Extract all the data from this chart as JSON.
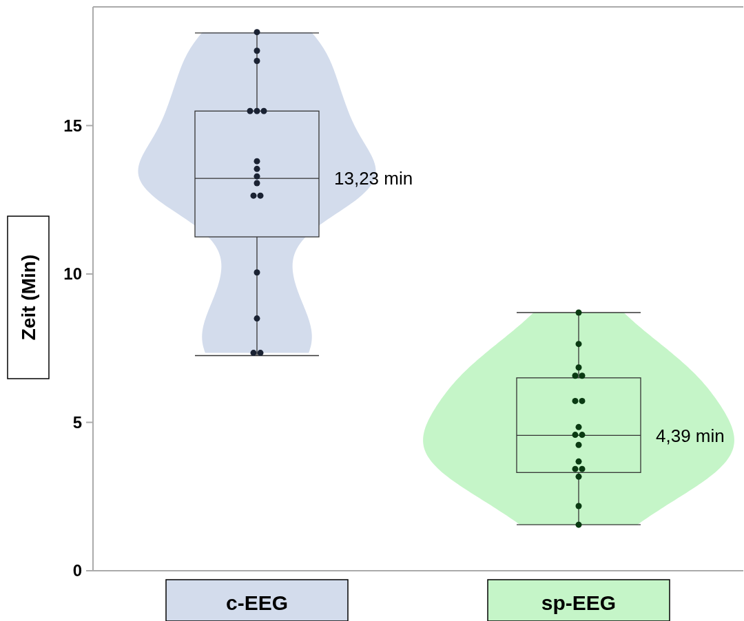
{
  "chart_data": {
    "type": "box",
    "ylabel": "Zeit (Min)",
    "categories": [
      "c-EEG",
      "sp-EEG"
    ],
    "colors": [
      "#d3dcec",
      "#c5f5c8"
    ],
    "boxes": [
      {
        "low": 7.25,
        "q1": 11.25,
        "median": 13.22,
        "q3": 15.49,
        "high": 18.12
      },
      {
        "low": 1.55,
        "q1": 3.31,
        "median": 4.56,
        "q3": 6.5,
        "high": 8.7
      }
    ],
    "series": [
      {
        "type": "scatter",
        "color": "#1a2233",
        "x": [
          "c-EEG",
          "c-EEG",
          "c-EEG",
          "c-EEG",
          "c-EEG",
          "c-EEG",
          "c-EEG",
          "c-EEG",
          "c-EEG",
          "c-EEG",
          "c-EEG",
          "c-EEG",
          "c-EEG",
          "c-EEG",
          "c-EEG",
          "c-EEG"
        ],
        "values": [
          18.15,
          17.52,
          17.18,
          15.49,
          15.49,
          15.49,
          13.8,
          13.54,
          13.29,
          13.06,
          12.64,
          12.64,
          10.05,
          8.5,
          7.34,
          7.34
        ]
      },
      {
        "type": "scatter",
        "color": "#0a3a12",
        "x": [
          "sp-EEG",
          "sp-EEG",
          "sp-EEG",
          "sp-EEG",
          "sp-EEG",
          "sp-EEG",
          "sp-EEG",
          "sp-EEG",
          "sp-EEG",
          "sp-EEG",
          "sp-EEG",
          "sp-EEG",
          "sp-EEG",
          "sp-EEG",
          "sp-EEG",
          "sp-EEG",
          "sp-EEG"
        ],
        "values": [
          8.7,
          7.64,
          6.85,
          6.57,
          6.57,
          5.72,
          5.72,
          4.84,
          4.58,
          4.58,
          4.24,
          3.68,
          3.43,
          3.43,
          3.17,
          2.18,
          1.55
        ]
      }
    ],
    "annotations": [
      "13,23 min",
      "4,39 min"
    ],
    "ylim": [
      0,
      19
    ],
    "yticks": [
      0,
      5,
      10,
      15
    ],
    "grid": false,
    "marker": "circle"
  }
}
